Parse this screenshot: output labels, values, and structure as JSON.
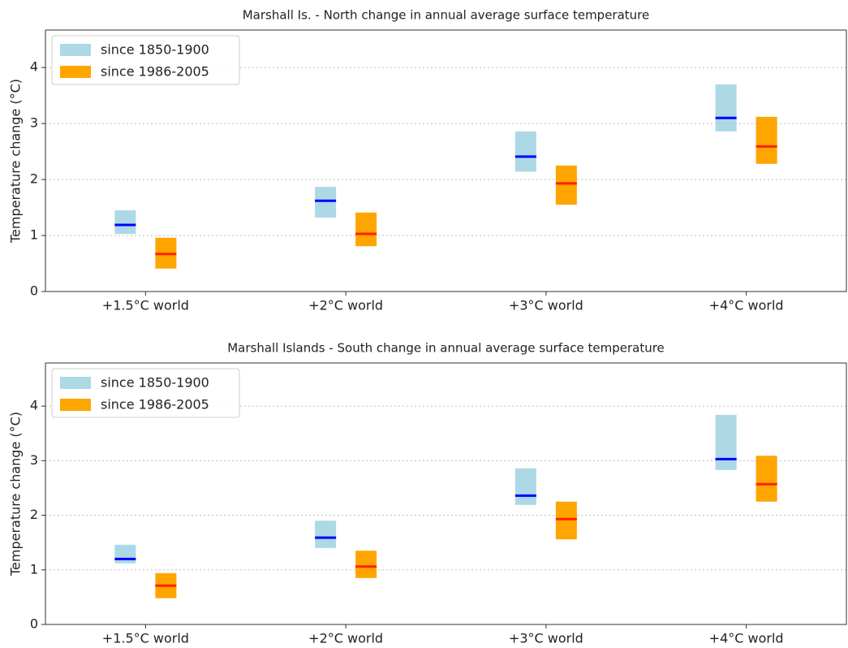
{
  "chart_data": [
    {
      "type": "range",
      "title": "Marshall Is. - North change in annual average surface temperature",
      "ylabel": "Temperature change (°C)",
      "categories": [
        "+1.5°C world",
        "+2°C world",
        "+3°C world",
        "+4°C world"
      ],
      "series": [
        {
          "name": "since 1850-1900",
          "color": "#add8e6",
          "median_color": "#0000ff",
          "low": [
            1.03,
            1.32,
            2.14,
            2.86
          ],
          "high": [
            1.45,
            1.87,
            2.86,
            3.7
          ],
          "median": [
            1.19,
            1.62,
            2.41,
            3.1
          ]
        },
        {
          "name": "since 1986-2005",
          "color": "#ffa500",
          "median_color": "#ff2000",
          "low": [
            0.41,
            0.81,
            1.55,
            2.28
          ],
          "high": [
            0.96,
            1.41,
            2.25,
            3.12
          ],
          "median": [
            0.67,
            1.03,
            1.93,
            2.59
          ]
        }
      ],
      "ylim": [
        0,
        4.67
      ],
      "yticks": [
        0,
        1,
        2,
        3,
        4
      ],
      "grid": true,
      "legend": "upper-left"
    },
    {
      "type": "range",
      "title": "Marshall Islands - South change in annual average surface temperature",
      "ylabel": "Temperature change (°C)",
      "categories": [
        "+1.5°C world",
        "+2°C world",
        "+3°C world",
        "+4°C world"
      ],
      "series": [
        {
          "name": "since 1850-1900",
          "color": "#add8e6",
          "median_color": "#0000ff",
          "low": [
            1.12,
            1.4,
            2.19,
            2.83
          ],
          "high": [
            1.46,
            1.9,
            2.86,
            3.84
          ],
          "median": [
            1.2,
            1.59,
            2.36,
            3.03
          ]
        },
        {
          "name": "since 1986-2005",
          "color": "#ffa500",
          "median_color": "#ff2000",
          "low": [
            0.48,
            0.85,
            1.56,
            2.25
          ],
          "high": [
            0.94,
            1.35,
            2.25,
            3.09
          ],
          "median": [
            0.71,
            1.06,
            1.93,
            2.57
          ]
        }
      ],
      "ylim": [
        0,
        4.79
      ],
      "yticks": [
        0,
        1,
        2,
        3,
        4
      ],
      "grid": true,
      "legend": "upper-left"
    }
  ]
}
